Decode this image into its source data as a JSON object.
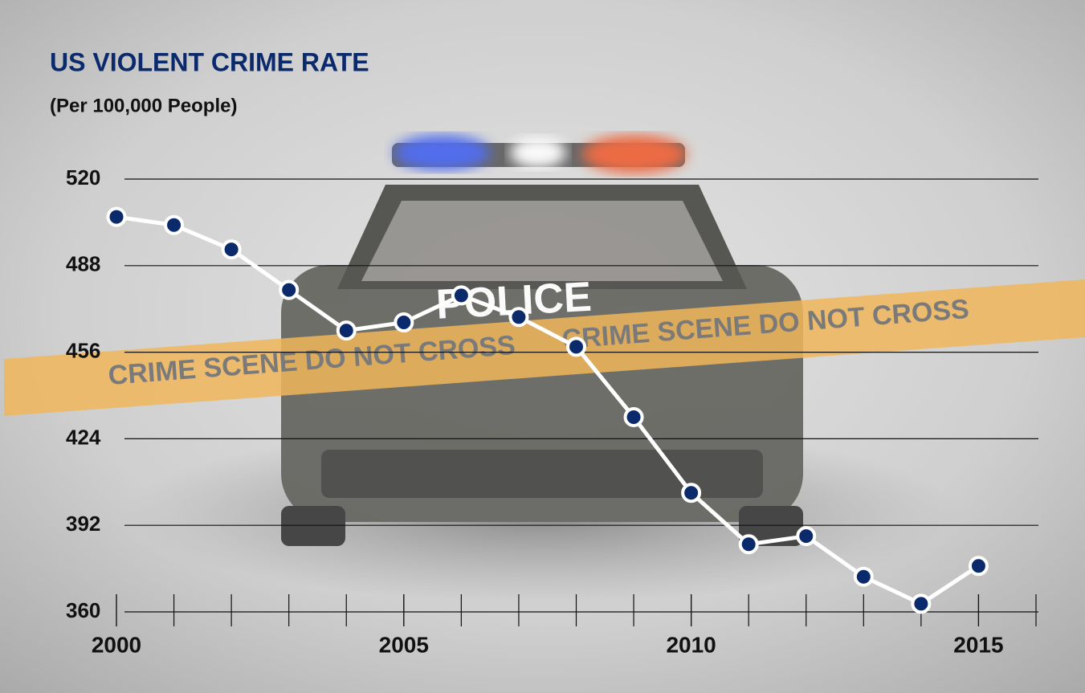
{
  "chart_data": {
    "type": "line",
    "title": "US VIOLENT CRIME RATE",
    "subtitle": "(Per 100,000 People)",
    "x": [
      2000,
      2001,
      2002,
      2003,
      2004,
      2005,
      2006,
      2007,
      2008,
      2009,
      2010,
      2011,
      2012,
      2013,
      2014,
      2015
    ],
    "series": [
      {
        "name": "Violent crime rate",
        "color": "#ffffff",
        "marker_color": "#0b2a6c",
        "values": [
          506,
          503,
          494,
          479,
          464,
          467,
          477,
          469,
          458,
          432,
          404,
          385,
          388,
          373,
          363,
          377
        ]
      }
    ],
    "xlim": [
      2000,
      2016
    ],
    "xticks": [
      2000,
      2005,
      2010,
      2015
    ],
    "ylim": [
      360,
      520
    ],
    "yticks": [
      360,
      392,
      424,
      456,
      488,
      520
    ],
    "grid": true,
    "car_label": "POLICE",
    "tape_texts": [
      "CRIME SCENE  DO NOT CROSS",
      "CRIME SCENE  DO NOT CROSS"
    ]
  }
}
